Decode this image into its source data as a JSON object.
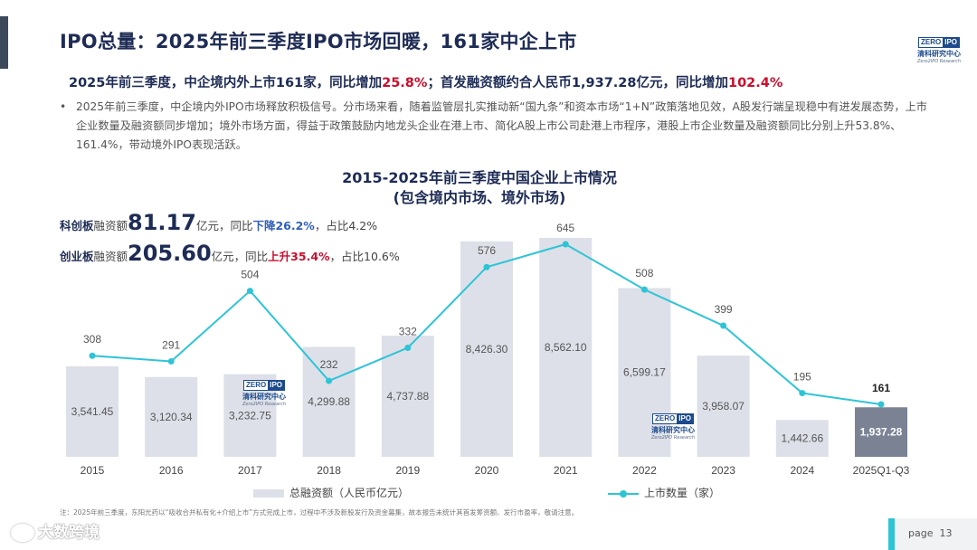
{
  "title": "IPO总量：2025年前三季度IPO市场回暖，161家中企上市",
  "logo": {
    "zero": "ZERO",
    "ipo": "IPO",
    "cn": "清科研究中心",
    "en": "Zero2IPO Research"
  },
  "headline": {
    "part1": "2025年前三季度，中企境内外上市161家，同比增加",
    "pct1": "25.8%",
    "part2": "；首发融资额约合人民币1,937.28亿元，同比增加",
    "pct2": "102.4%"
  },
  "paragraph": {
    "bullet": "•",
    "text": "2025年前三季度，中企境内外IPO市场释放积极信号。分市场来看，随着监管层扎实推动新“国九条”和资本市场“1+N”政策落地见效，A股发行端呈现稳中有进发展态势，上市企业数量及融资额同步增加；境外市场方面，得益于政策鼓励内地龙头企业在港上市、简化A股上市公司赴港上市程序，港股上市企业数量及融资额同比分别上升53.8%、161.4%，带动境外IPO表现活跃。"
  },
  "stats": {
    "star": {
      "label": "科创板",
      "pre": "融资额",
      "value": "81.17",
      "unit": "亿元，同比",
      "change": "下降26.2%",
      "share": "，占比4.2%"
    },
    "gem": {
      "label": "创业板",
      "pre": "融资额",
      "value": "205.60",
      "unit": "亿元，同比",
      "change": "上升35.4%",
      "share": "，占比10.6%"
    }
  },
  "chart_data": {
    "type": "bar+line",
    "title": "2015-2025年前三季度中国企业上市情况",
    "subtitle": "(包含境内市场、境外市场)",
    "categories": [
      "2015",
      "2016",
      "2017",
      "2018",
      "2019",
      "2020",
      "2021",
      "2022",
      "2023",
      "2024",
      "2025Q1-Q3"
    ],
    "series": [
      {
        "name": "总融资额（人民币亿元）",
        "type": "bar",
        "values": [
          3541.45,
          3120.34,
          3232.75,
          4299.88,
          4737.88,
          8426.3,
          8562.1,
          6599.17,
          3958.07,
          1442.66,
          1937.28
        ],
        "labels": [
          "3,541.45",
          "3,120.34",
          "3,232.75",
          "4,299.88",
          "4,737.88",
          "8,426.30",
          "8,562.10",
          "6,599.17",
          "3,958.07",
          "1,442.66",
          "1,937.28"
        ]
      },
      {
        "name": "上市数量（家）",
        "type": "line",
        "values": [
          308,
          291,
          504,
          232,
          332,
          576,
          645,
          508,
          399,
          195,
          161
        ],
        "labels": [
          "308",
          "291",
          "504",
          "232",
          "332",
          "576",
          "645",
          "508",
          "399",
          "195",
          "161"
        ]
      }
    ],
    "colors": {
      "bar": "#dde0e8",
      "bar_highlight": "#7a8294",
      "line": "#2ec4d6"
    }
  },
  "note": "注：2025年前三季度，东阳光药以“吸收合并私有化+介绍上市”方式完成上市，过程中不涉及新股发行及资金募集，故本报告未统计其首发筹资额、发行市盈率，敬请注意。",
  "watermark": "大数跨境",
  "page": {
    "label": "page",
    "number": "13"
  }
}
